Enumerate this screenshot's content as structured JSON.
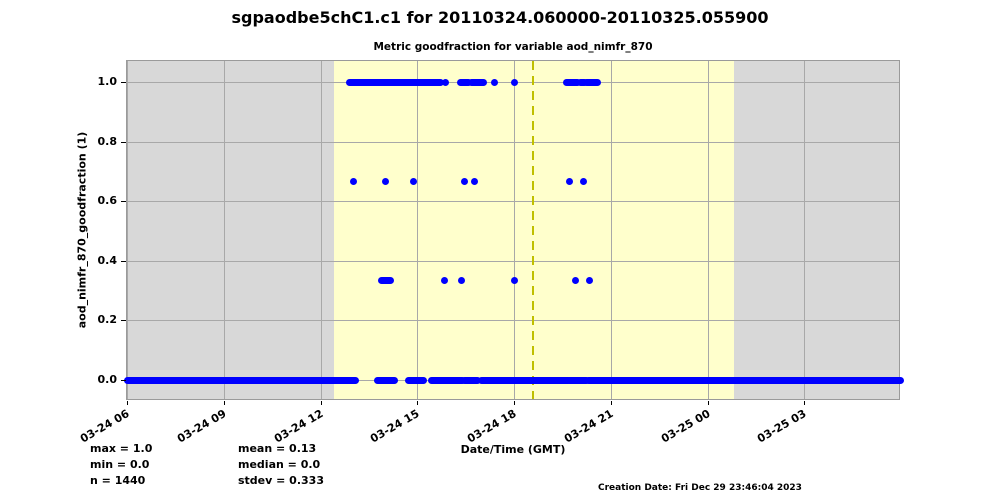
{
  "header": {
    "title": "sgpaodbe5chC1.c1 for 20110324.060000-20110325.055900"
  },
  "stats": {
    "col1": [
      "max = 1.0",
      "min = 0.0",
      "n = 1440"
    ],
    "col2": [
      "mean = 0.13",
      "median = 0.0",
      "stdev = 0.333"
    ]
  },
  "footer": {
    "creation_date": "Creation Date: Fri Dec 29 23:46:04 2023"
  },
  "chart_data": {
    "type": "scatter",
    "title": "Metric goodfraction for variable aod_nimfr_870",
    "xlabel": "Date/Time (GMT)",
    "ylabel": "aod_nimfr_870_goodfraction (1)",
    "x_unit": "hours since 2011-03-24 06:00 GMT",
    "x_range_hours": [
      0,
      24
    ],
    "ylim": [
      -0.07,
      1.07
    ],
    "grid": true,
    "x_ticks": [
      {
        "h": 0,
        "label": "03-24 06"
      },
      {
        "h": 3,
        "label": "03-24 09"
      },
      {
        "h": 6,
        "label": "03-24 12"
      },
      {
        "h": 9,
        "label": "03-24 15"
      },
      {
        "h": 12,
        "label": "03-24 18"
      },
      {
        "h": 15,
        "label": "03-24 21"
      },
      {
        "h": 18,
        "label": "03-25 00"
      },
      {
        "h": 21,
        "label": "03-25 03"
      }
    ],
    "y_ticks": [
      {
        "v": 0.0,
        "label": "0.0"
      },
      {
        "v": 0.2,
        "label": "0.2"
      },
      {
        "v": 0.4,
        "label": "0.4"
      },
      {
        "v": 0.6,
        "label": "0.6"
      },
      {
        "v": 0.8,
        "label": "0.8"
      },
      {
        "v": 1.0,
        "label": "1.0"
      }
    ],
    "daylight_band_hours": [
      6.42,
      18.82
    ],
    "dashed_marker_hour": 12.59,
    "colors": {
      "marker": "#0000ff",
      "plot_background": "#d8d8d8",
      "daylight_band": "#ffffcc",
      "dashed_marker": "#bfbf00",
      "grid": "#a8a8a8"
    },
    "rows": [
      {
        "y": 1.0,
        "segments": [
          [
            6.91,
            9.71
          ],
          [
            10.33,
            10.6
          ],
          [
            10.67,
            11.07
          ],
          [
            13.64,
            13.98
          ],
          [
            14.05,
            14.2
          ],
          [
            14.26,
            14.6
          ]
        ],
        "points": [
          9.89,
          11.38,
          12.0
        ]
      },
      {
        "y": 0.667,
        "segments": [],
        "points": [
          7.01,
          8.03,
          8.87,
          10.45,
          10.76,
          13.71,
          14.17
        ]
      },
      {
        "y": 0.333,
        "segments": [
          [
            7.9,
            8.16
          ]
        ],
        "points": [
          9.83,
          10.36,
          12.0,
          13.92,
          14.33
        ]
      },
      {
        "y": 0.0,
        "segments": [
          [
            0.0,
            7.07
          ],
          [
            7.78,
            8.28
          ],
          [
            8.74,
            9.18
          ],
          [
            9.43,
            10.4
          ],
          [
            10.45,
            10.88
          ],
          [
            10.98,
            13.68
          ],
          [
            13.73,
            14.26
          ],
          [
            14.32,
            24.0
          ]
        ],
        "points": []
      }
    ]
  }
}
